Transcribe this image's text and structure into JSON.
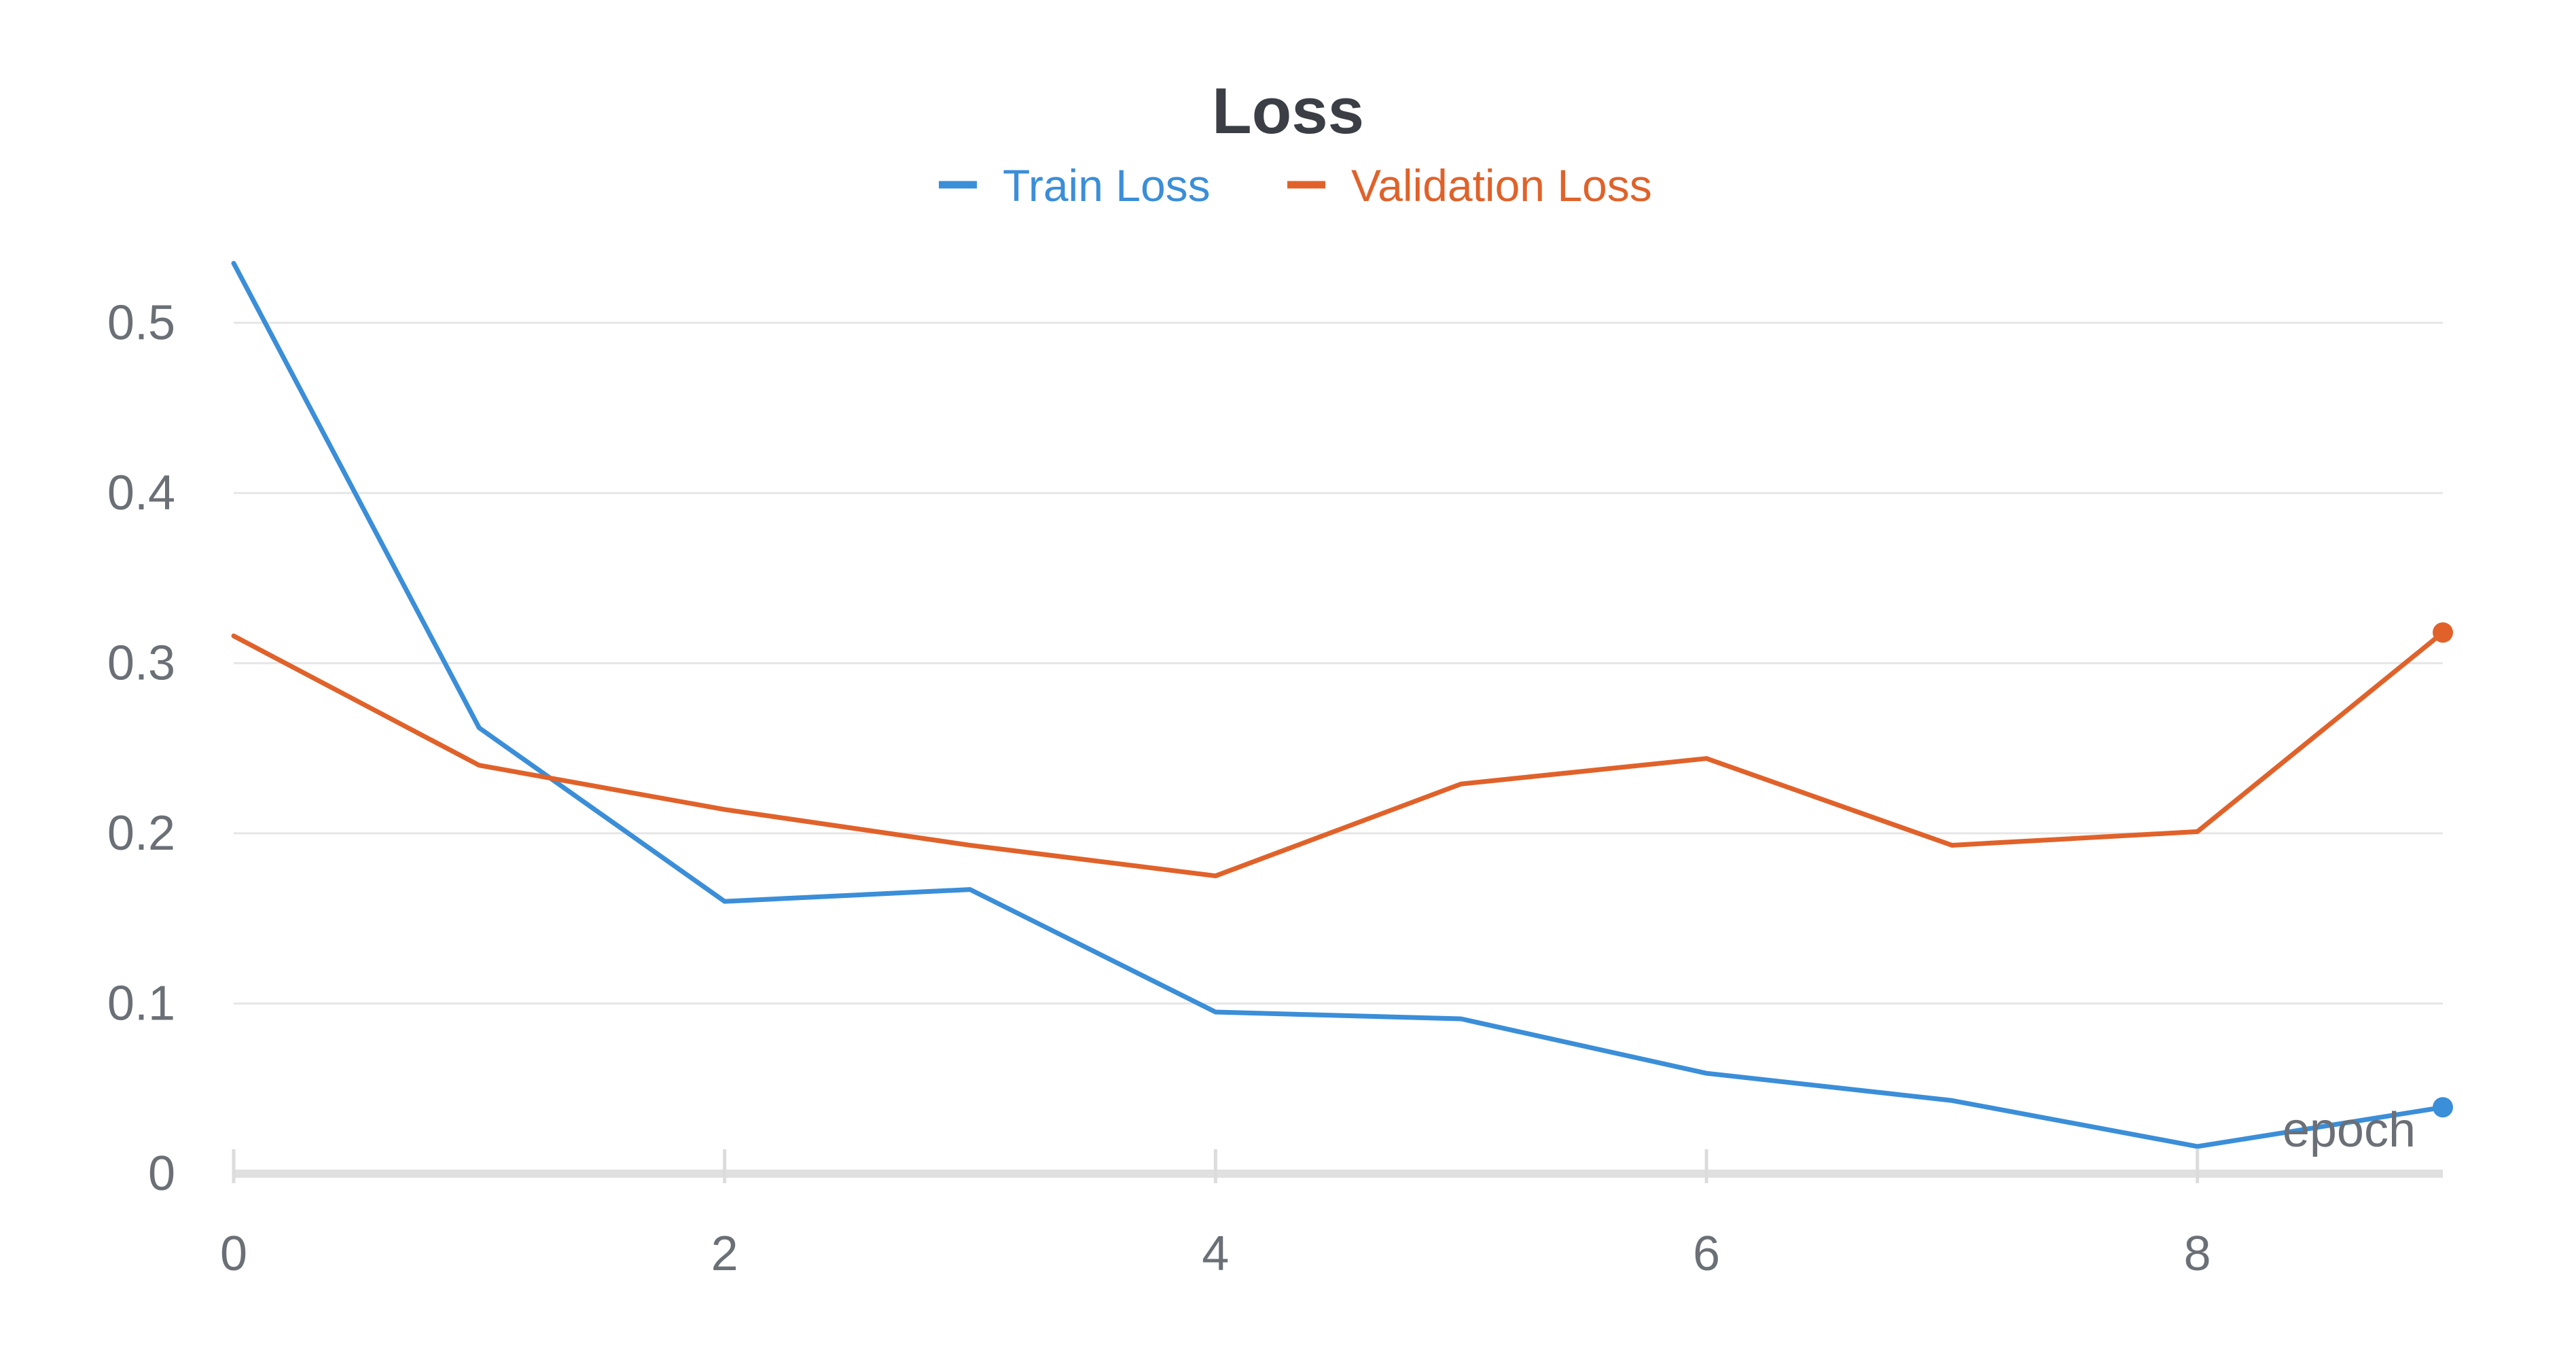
{
  "chart_data": {
    "type": "line",
    "title": "Loss",
    "xlabel": "epoch",
    "ylabel": "",
    "x": [
      0,
      1,
      2,
      3,
      4,
      5,
      6,
      7,
      8,
      9
    ],
    "xlim": [
      0,
      9
    ],
    "ylim": [
      0,
      0.55
    ],
    "x_ticks": [
      0,
      2,
      4,
      6,
      8
    ],
    "y_ticks": [
      0,
      0.1,
      0.2,
      0.3,
      0.4,
      0.5
    ],
    "x_tick_labels": [
      "0",
      "2",
      "4",
      "6",
      "8"
    ],
    "y_tick_labels": [
      "0",
      "0.1",
      "0.2",
      "0.3",
      "0.4",
      "0.5"
    ],
    "grid": true,
    "legend_position": "top-center",
    "series": [
      {
        "name": "Train Loss",
        "color": "#3b8ed8",
        "values": [
          0.535,
          0.262,
          0.16,
          0.167,
          0.095,
          0.091,
          0.059,
          0.043,
          0.016,
          0.039
        ],
        "end_marker": true
      },
      {
        "name": "Validation Loss",
        "color": "#e0622a",
        "values": [
          0.316,
          0.24,
          0.214,
          0.193,
          0.175,
          0.229,
          0.244,
          0.193,
          0.201,
          0.318
        ],
        "end_marker": true
      }
    ]
  }
}
